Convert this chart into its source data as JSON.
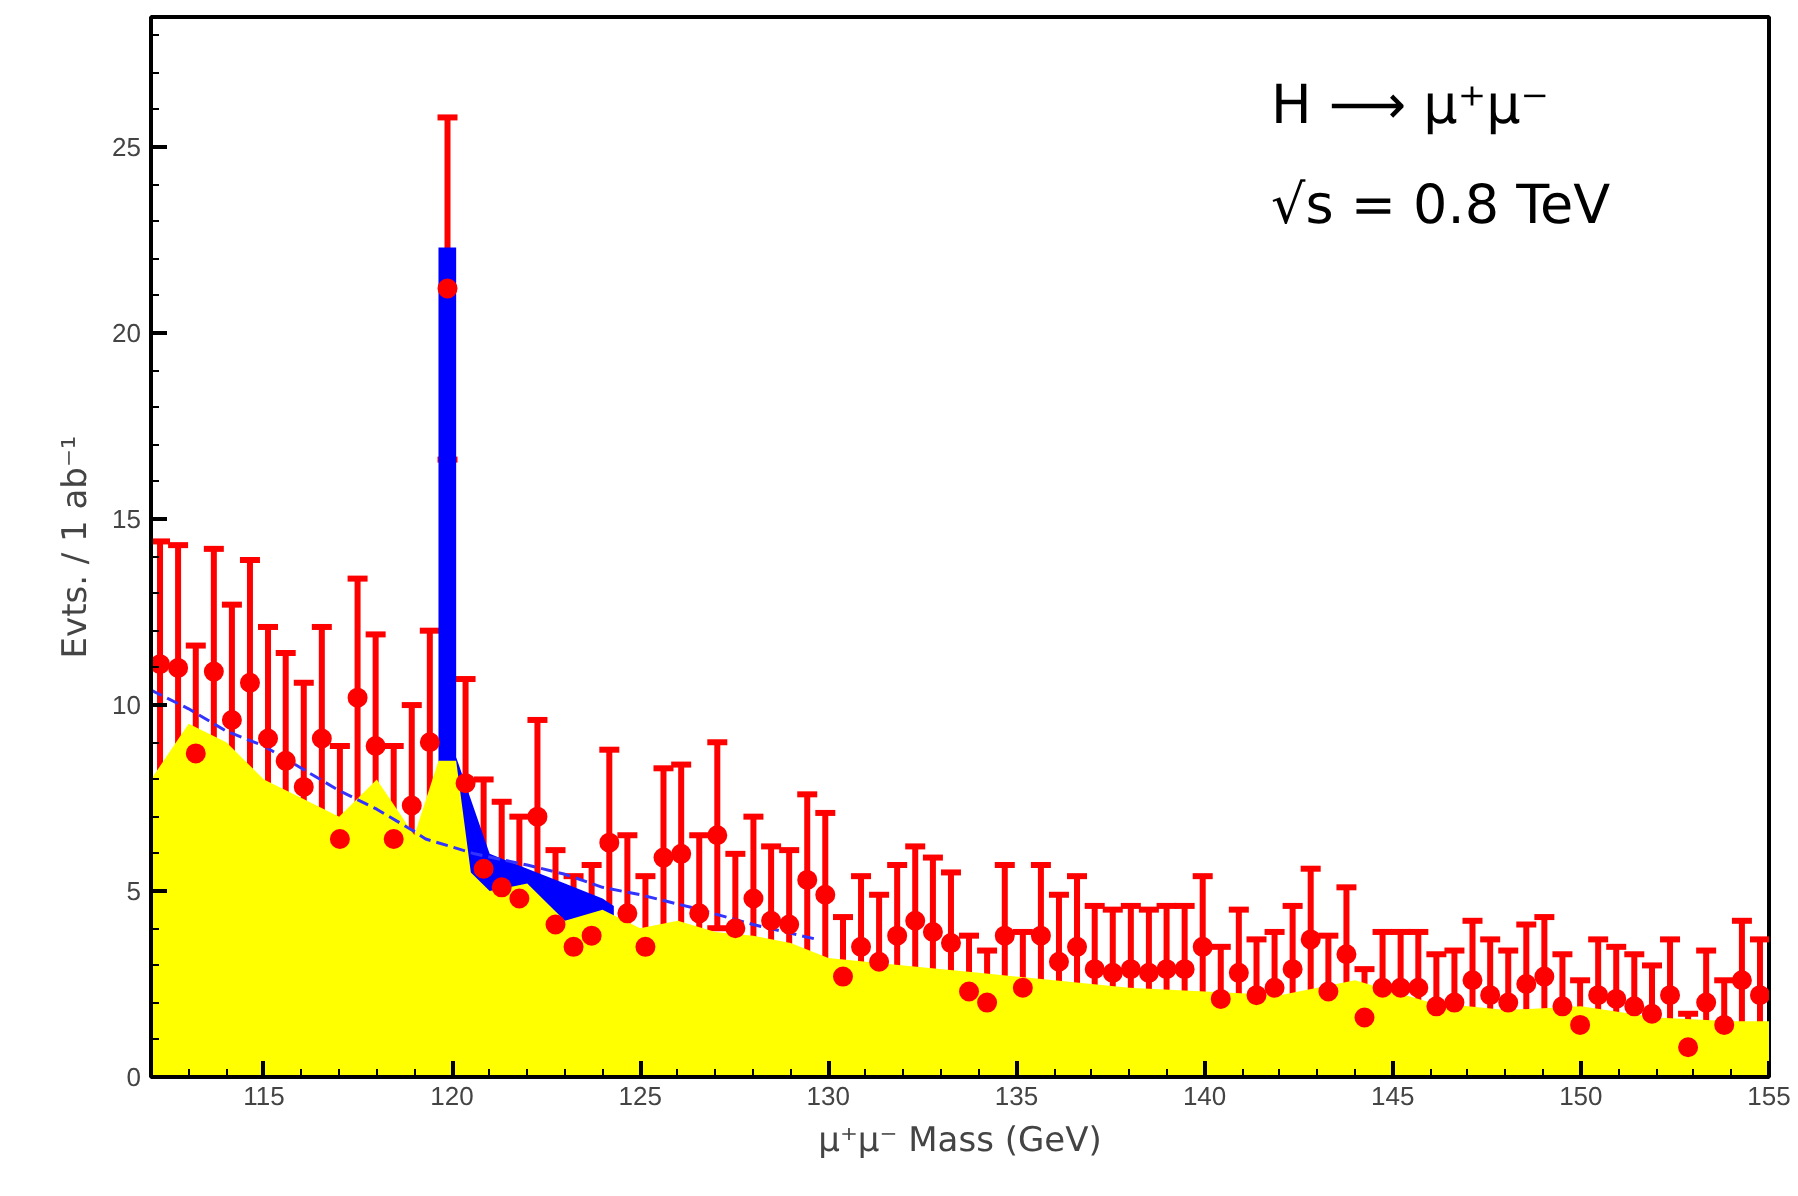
{
  "chart_data": {
    "type": "scatter",
    "xlabel": "μ⁺μ⁻ Mass (GeV)",
    "ylabel": "Evts. / 1 ab⁻¹",
    "annotations": [
      "H ⟶ μ⁺μ⁻",
      "√s = 0.8 TeV"
    ],
    "xlim": [
      112,
      155
    ],
    "xticks": [
      115,
      120,
      125,
      130,
      135,
      140,
      145,
      150,
      155
    ],
    "ylim": [
      0,
      28.5
    ],
    "yticks": [
      0,
      5,
      10,
      15,
      20,
      25
    ],
    "grid": false,
    "series": [
      {
        "type": "area",
        "color": "#0000ff",
        "x": [
          119.64,
          119.64,
          120.11,
          120.11,
          121,
          122,
          123,
          124,
          124.3,
          124.3
        ],
        "values": [
          0,
          22.3,
          22.3,
          8.6,
          6.0,
          5.6,
          5.2,
          4.8,
          4.6,
          0
        ]
      },
      {
        "type": "area",
        "color": "#ffff00",
        "x": [
          112,
          113,
          114,
          115,
          116,
          117,
          118,
          119,
          119.64,
          120.11,
          120.5,
          121,
          122,
          123,
          124,
          125,
          126,
          127,
          128,
          129,
          130,
          132,
          134,
          136,
          138,
          140,
          142,
          144,
          146,
          148,
          150,
          152,
          154,
          155
        ],
        "values": [
          8.0,
          9.5,
          9.0,
          8.0,
          7.5,
          7.0,
          8.0,
          6.5,
          8.5,
          8.5,
          5.5,
          5.0,
          5.2,
          4.2,
          4.5,
          4.0,
          4.2,
          3.9,
          3.8,
          3.6,
          3.2,
          3.0,
          2.8,
          2.6,
          2.4,
          2.3,
          2.2,
          2.6,
          2.0,
          1.8,
          1.9,
          1.6,
          1.5,
          1.5
        ]
      },
      {
        "type": "line",
        "color": "#3333ff",
        "line_style": "dashed",
        "x": [
          112,
          113,
          114,
          115,
          116,
          117,
          118,
          119,
          119.3,
          120.6,
          122,
          123,
          124,
          125,
          126.4,
          128,
          129.7
        ],
        "values": [
          10.4,
          9.9,
          9.3,
          8.9,
          8.3,
          7.7,
          7.2,
          6.6,
          6.4,
          6.0,
          5.7,
          5.45,
          5.1,
          4.9,
          4.55,
          4.1,
          3.7
        ]
      },
      {
        "color": "#ff0000",
        "marker": "circle",
        "x": [
          112.24,
          112.72,
          113.19,
          113.67,
          114.15,
          114.63,
          115.11,
          115.58,
          116.06,
          116.54,
          117.02,
          117.49,
          117.97,
          118.45,
          118.93,
          119.41,
          119.88,
          120.36,
          120.84,
          121.32,
          121.79,
          122.27,
          122.75,
          123.23,
          123.71,
          124.18,
          124.66,
          125.14,
          125.62,
          126.09,
          126.57,
          127.05,
          127.53,
          128.01,
          128.48,
          128.96,
          129.44,
          129.92,
          130.39,
          130.87,
          131.35,
          131.83,
          132.31,
          132.78,
          133.26,
          133.74,
          134.22,
          134.69,
          135.17,
          135.65,
          136.13,
          136.61,
          137.08,
          137.56,
          138.04,
          138.52,
          138.99,
          139.47,
          139.95,
          140.43,
          140.91,
          141.38,
          141.86,
          142.34,
          142.82,
          143.29,
          143.77,
          144.25,
          144.73,
          145.21,
          145.68,
          146.16,
          146.64,
          147.12,
          147.59,
          148.07,
          148.55,
          149.03,
          149.51,
          149.98,
          150.46,
          150.94,
          151.42,
          151.89,
          152.37,
          152.85,
          153.33,
          153.81,
          154.28,
          154.76
        ],
        "values": [
          11.1,
          11.0,
          8.7,
          10.9,
          9.6,
          10.6,
          9.1,
          8.5,
          7.8,
          9.1,
          6.4,
          10.2,
          8.9,
          6.4,
          7.3,
          9.0,
          21.2,
          7.9,
          5.6,
          5.1,
          4.8,
          7.0,
          4.1,
          3.5,
          3.8,
          6.3,
          4.4,
          3.5,
          5.9,
          6.0,
          4.4,
          6.5,
          4.0,
          4.8,
          4.2,
          4.1,
          5.3,
          4.9,
          2.7,
          3.5,
          3.1,
          3.8,
          4.2,
          3.9,
          3.6,
          2.3,
          2.0,
          3.8,
          2.4,
          3.8,
          3.1,
          3.5,
          2.9,
          2.8,
          2.9,
          2.8,
          2.9,
          2.9,
          3.5,
          2.1,
          2.8,
          2.2,
          2.4,
          2.9,
          3.7,
          2.3,
          3.3,
          1.6,
          2.4,
          2.4,
          2.4,
          1.9,
          2.0,
          2.6,
          2.2,
          2.0,
          2.5,
          2.7,
          1.9,
          1.4,
          2.2,
          2.1,
          1.9,
          1.7,
          2.2,
          0.8,
          2.0,
          1.4,
          2.6,
          2.2
        ],
        "errors": [
          3.3,
          3.3,
          2.9,
          3.3,
          3.1,
          3.3,
          3.0,
          2.9,
          2.8,
          3.0,
          2.5,
          3.2,
          3.0,
          2.5,
          2.7,
          3.0,
          4.6,
          2.8,
          2.4,
          2.3,
          2.2,
          2.6,
          2.0,
          1.9,
          1.9,
          2.5,
          2.1,
          1.9,
          2.4,
          2.4,
          2.1,
          2.5,
          2.0,
          2.2,
          2.0,
          2.0,
          2.3,
          2.2,
          1.6,
          1.9,
          1.8,
          1.9,
          2.0,
          2.0,
          1.9,
          1.5,
          1.4,
          1.9,
          1.5,
          1.9,
          1.8,
          1.9,
          1.7,
          1.7,
          1.7,
          1.7,
          1.7,
          1.7,
          1.9,
          1.4,
          1.7,
          1.5,
          1.5,
          1.7,
          1.9,
          1.5,
          1.8,
          1.3,
          1.5,
          1.5,
          1.5,
          1.4,
          1.4,
          1.6,
          1.5,
          1.4,
          1.6,
          1.6,
          1.4,
          1.2,
          1.5,
          1.4,
          1.4,
          1.3,
          1.5,
          0.9,
          1.4,
          1.2,
          1.6,
          1.5
        ]
      }
    ]
  }
}
